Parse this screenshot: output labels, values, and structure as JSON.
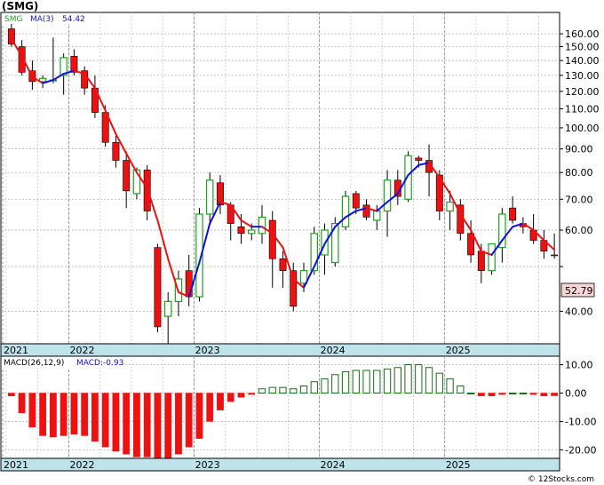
{
  "title": "(SMG)",
  "credit": "© 12Stocks.com",
  "colors": {
    "up": "#22a022",
    "down": "#ee1111",
    "ma_up": "#1010dd",
    "ma_down": "#ee1111",
    "band": "#bfe3ea",
    "last_box": "#f7d6d6"
  },
  "chart_data": [
    {
      "type": "candlestick",
      "scale": "log",
      "legend": {
        "symbol": "SMG",
        "ma_label": "MA(3)",
        "ma_value": "54.42"
      },
      "last_price_label": "52.79",
      "y_ticks": [
        "160.00",
        "150.00",
        "140.00",
        "130.00",
        "120.00",
        "110.00",
        "100.00",
        "90.00",
        "80.00",
        "70.00",
        "60.00",
        "40.00"
      ],
      "y_tick_values": [
        160,
        150,
        140,
        130,
        120,
        110,
        100,
        90,
        80,
        70,
        60,
        40
      ],
      "ylim": [
        34,
        178
      ],
      "x_labels": [
        {
          "label": "2021",
          "index": 0
        },
        {
          "label": "2022",
          "index": 6
        },
        {
          "label": "2023",
          "index": 18
        },
        {
          "label": "2024",
          "index": 30
        },
        {
          "label": "2025",
          "index": 42
        }
      ],
      "ohlc": [
        [
          164,
          169,
          150,
          152
        ],
        [
          150,
          155,
          130,
          132
        ],
        [
          133,
          140,
          121,
          126
        ],
        [
          126,
          130,
          122,
          128
        ],
        [
          127,
          157,
          125,
          127
        ],
        [
          130,
          145,
          118,
          142
        ],
        [
          143,
          148,
          130,
          132
        ],
        [
          133,
          136,
          118,
          122
        ],
        [
          122,
          130,
          105,
          108
        ],
        [
          108,
          112,
          91,
          93
        ],
        [
          93,
          96,
          82,
          85
        ],
        [
          85,
          89,
          67,
          73
        ],
        [
          72,
          82,
          70,
          81
        ],
        [
          81,
          83,
          63,
          66
        ],
        [
          55,
          56,
          36,
          37
        ],
        [
          39,
          44,
          33,
          42
        ],
        [
          42,
          49,
          39,
          47
        ],
        [
          49,
          53,
          41,
          43
        ],
        [
          43,
          67,
          42,
          65
        ],
        [
          65,
          80,
          62,
          77
        ],
        [
          76,
          79,
          65,
          68
        ],
        [
          68,
          69,
          57,
          62
        ],
        [
          61,
          65,
          56,
          59
        ],
        [
          59,
          62,
          57,
          60
        ],
        [
          59,
          68,
          56,
          64
        ],
        [
          63,
          66,
          45,
          52
        ],
        [
          52,
          54,
          45,
          49
        ],
        [
          49,
          51,
          40,
          41
        ],
        [
          46,
          51,
          44,
          49
        ],
        [
          49,
          61,
          48,
          59
        ],
        [
          53,
          62,
          48,
          60
        ],
        [
          51,
          64,
          50,
          62
        ],
        [
          61,
          73,
          60,
          71
        ],
        [
          72,
          73,
          65,
          67
        ],
        [
          68,
          70,
          63,
          64
        ],
        [
          63,
          68,
          60,
          66
        ],
        [
          66,
          81,
          58,
          77
        ],
        [
          77,
          81,
          68,
          71
        ],
        [
          70,
          89,
          69,
          87
        ],
        [
          86,
          87,
          82,
          85
        ],
        [
          85,
          92,
          71,
          80
        ],
        [
          79,
          81,
          63,
          66
        ],
        [
          66,
          73,
          60,
          69
        ],
        [
          68,
          70,
          57,
          59
        ],
        [
          59,
          63,
          51,
          53
        ],
        [
          54,
          56,
          46,
          49
        ],
        [
          49,
          56,
          48,
          56
        ],
        [
          55,
          67,
          51,
          65
        ],
        [
          67,
          71,
          62,
          63
        ],
        [
          62,
          64,
          59,
          61
        ],
        [
          60,
          65,
          56,
          57
        ],
        [
          57,
          60,
          52,
          54
        ],
        [
          53,
          59,
          52,
          52.8
        ]
      ],
      "ma": [
        156,
        143,
        129,
        125,
        127,
        131,
        133,
        131,
        122,
        109,
        97,
        88,
        80,
        74,
        63,
        52,
        44,
        43,
        51,
        62,
        69,
        68,
        63,
        61,
        61,
        59,
        55,
        47,
        45,
        50,
        56,
        61,
        64,
        66,
        67,
        66,
        69,
        72,
        79,
        83,
        84,
        78,
        72,
        65,
        60,
        54,
        53,
        57,
        61,
        62,
        60,
        57,
        54.4
      ]
    },
    {
      "type": "bar",
      "legend": {
        "label": "MACD(26,12,9)",
        "value_label": "MACD:-0.93"
      },
      "y_ticks": [
        "10.00",
        "0.00",
        "-10.00",
        "-20.00"
      ],
      "y_tick_values": [
        10,
        0,
        -10,
        -20
      ],
      "ylim": [
        -23,
        13
      ],
      "x_labels": [
        "2021",
        "2022",
        "2023",
        "2024",
        "2025"
      ],
      "values": [
        -1,
        -7,
        -12,
        -15,
        -15.5,
        -15,
        -14.5,
        -15,
        -17,
        -19,
        -20.5,
        -21.5,
        -22.5,
        -22.5,
        -23,
        -23,
        -21.5,
        -19,
        -16,
        -10,
        -6,
        -3,
        -1.5,
        -0.5,
        1.5,
        2,
        2,
        1.5,
        2.5,
        4,
        5,
        6.5,
        7.5,
        8,
        8,
        8,
        8.5,
        9,
        10,
        10,
        9,
        7,
        5,
        2.5,
        0,
        -1,
        -1,
        -0.5,
        0,
        0,
        -0.5,
        -1,
        -0.93
      ]
    }
  ]
}
